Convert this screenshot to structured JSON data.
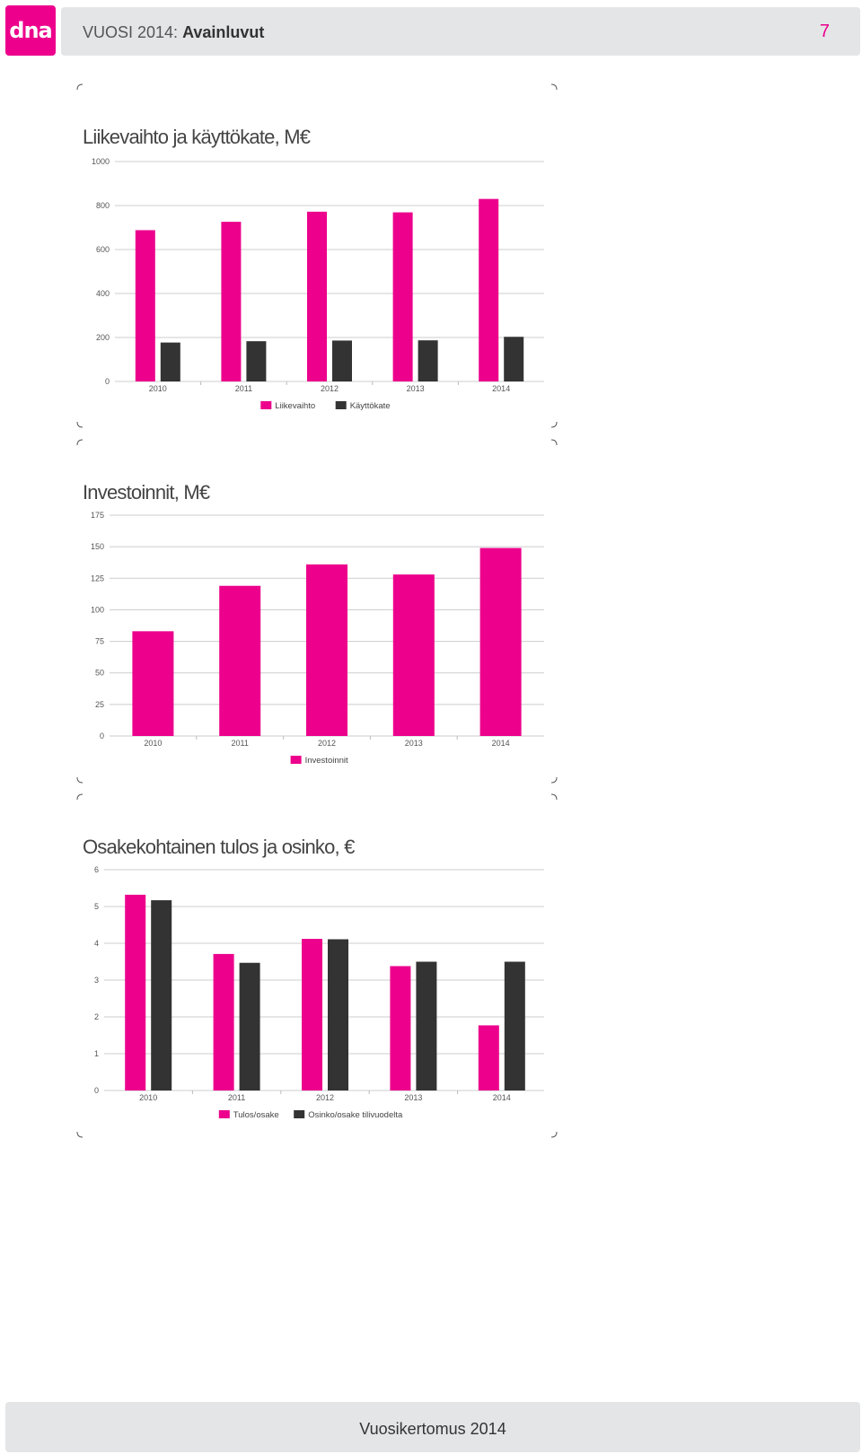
{
  "header": {
    "logo_text": "dna",
    "title_prefix": "VUOSI 2014:",
    "title_bold": "Avainluvut",
    "page_number": "7"
  },
  "footer": {
    "text": "Vuosikertomus 2014"
  },
  "colors": {
    "accent": "#ec008c",
    "dark": "#333333",
    "grid": "#cccccc"
  },
  "chart_data": [
    {
      "type": "bar",
      "title": "Liikevaihto ja käyttökate, M€",
      "categories": [
        "2010",
        "2011",
        "2012",
        "2013",
        "2014"
      ],
      "ylim": [
        0,
        1000
      ],
      "yticks": [
        0,
        200,
        400,
        600,
        800,
        1000
      ],
      "series": [
        {
          "name": "Liikevaihto",
          "color": "#ec008c",
          "values": [
            688,
            726,
            772,
            769,
            830
          ]
        },
        {
          "name": "Käyttökate",
          "color": "#333333",
          "values": [
            177,
            183,
            186,
            187,
            203
          ]
        }
      ],
      "grid": true,
      "legend": "bottom"
    },
    {
      "type": "bar",
      "title": "Investoinnit, M€",
      "categories": [
        "2010",
        "2011",
        "2012",
        "2013",
        "2014"
      ],
      "ylim": [
        0,
        175
      ],
      "yticks": [
        0,
        25,
        50,
        75,
        100,
        125,
        150,
        175
      ],
      "series": [
        {
          "name": "Investoinnit",
          "color": "#ec008c",
          "values": [
            83,
            119,
            136,
            128,
            149
          ]
        }
      ],
      "grid": true,
      "legend": "bottom"
    },
    {
      "type": "bar",
      "title": "Osakekohtainen tulos ja osinko, €",
      "categories": [
        "2010",
        "2011",
        "2012",
        "2013",
        "2014"
      ],
      "ylim": [
        0,
        6
      ],
      "yticks": [
        0,
        1,
        2,
        3,
        4,
        5,
        6
      ],
      "series": [
        {
          "name": "Tulos/osake",
          "color": "#ec008c",
          "values": [
            5.32,
            3.71,
            4.12,
            3.38,
            1.77
          ]
        },
        {
          "name": "Osinko/osake tilivuodelta",
          "color": "#333333",
          "values": [
            5.17,
            3.47,
            4.11,
            3.5,
            3.5
          ]
        }
      ],
      "grid": true,
      "legend": "bottom"
    }
  ]
}
